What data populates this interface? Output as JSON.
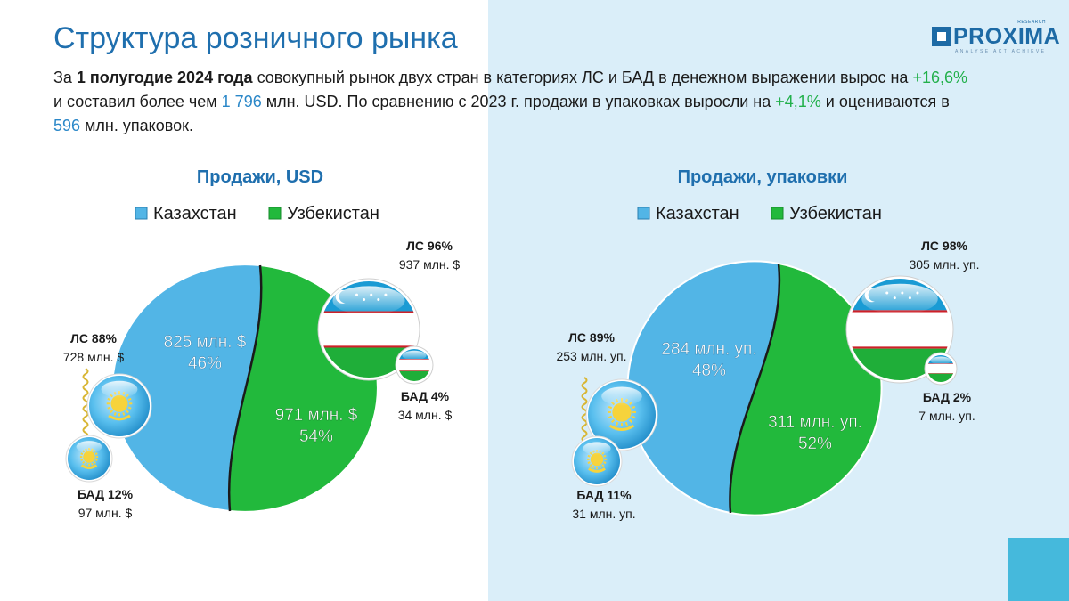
{
  "page": {
    "title": "Структура розничного рынка",
    "logo": {
      "brand": "PROXIMA",
      "research": "RESEARCH",
      "tagline": "ANALYSE ACT ACHIEVE"
    },
    "intro": {
      "p1": "За ",
      "p2": "1 полугодие 2024 года",
      "p3": " совокупный рынок двух стран в категориях ЛС и БАД в денежном выражении вырос на ",
      "p4": "+16,6%",
      "p5": " и составил более чем ",
      "p6": "1 796",
      "p7": " млн. USD. По сравнению с 2023 г. продажи в упаковках выросли на ",
      "p8": "+4,1%",
      "p9": " и оцениваются в ",
      "p10": "596",
      "p11": " млн. упаковок."
    }
  },
  "colors": {
    "kz": "#52b5e6",
    "uz": "#22b93c",
    "title_blue": "#1f6fae",
    "accent_green": "#22b04b",
    "accent_blue": "#2a87c8"
  },
  "chart_data": [
    {
      "type": "pie",
      "title": "Продажи, USD",
      "legend": [
        "Казахстан",
        "Узбекистан"
      ],
      "legend_position": "top",
      "series": [
        {
          "name": "Казахстан",
          "value": 825,
          "label": "825 млн. $",
          "pct": "46%",
          "breakdown": [
            {
              "name": "ЛС 88%",
              "value": "728 млн. $"
            },
            {
              "name": "БАД 12%",
              "value": "97 млн. $"
            }
          ]
        },
        {
          "name": "Узбекистан",
          "value": 971,
          "label": "971 млн. $",
          "pct": "54%",
          "breakdown": [
            {
              "name": "ЛС 96%",
              "value": "937 млн. $"
            },
            {
              "name": "БАД 4%",
              "value": "34 млн. $"
            }
          ]
        }
      ]
    },
    {
      "type": "pie",
      "title": "Продажи, упаковки",
      "legend": [
        "Казахстан",
        "Узбекистан"
      ],
      "legend_position": "top",
      "series": [
        {
          "name": "Казахстан",
          "value": 284,
          "label": "284 млн. уп.",
          "pct": "48%",
          "breakdown": [
            {
              "name": "ЛС 89%",
              "value": "253 млн. уп."
            },
            {
              "name": "БАД 11%",
              "value": "31 млн. уп."
            }
          ]
        },
        {
          "name": "Узбекистан",
          "value": 311,
          "label": "311 млн. уп.",
          "pct": "52%",
          "breakdown": [
            {
              "name": "ЛС 98%",
              "value": "305 млн. уп."
            },
            {
              "name": "БАД 2%",
              "value": "7 млн. уп."
            }
          ]
        }
      ]
    }
  ]
}
